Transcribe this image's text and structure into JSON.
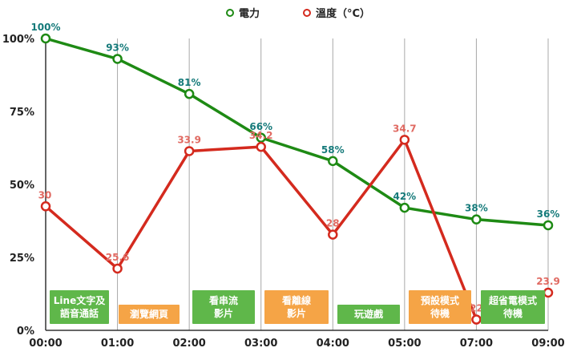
{
  "legend": [
    {
      "label": "電力",
      "color": "#1e8a14"
    },
    {
      "label": "溫度（°C）",
      "color": "#d42a1e"
    }
  ],
  "chart_data": {
    "type": "line",
    "categories": [
      "00:00",
      "01:00",
      "02:00",
      "03:00",
      "04:00",
      "05:00",
      "07:00",
      "09:00"
    ],
    "series": [
      {
        "name": "電力",
        "color": "#1e8a14",
        "label_color": "#157a7a",
        "values": [
          100,
          93,
          81,
          66,
          58,
          42,
          38,
          36
        ],
        "labels": [
          "100%",
          "93%",
          "81%",
          "66%",
          "58%",
          "42%",
          "38%",
          "36%"
        ]
      },
      {
        "name": "溫度（°C）",
        "color": "#d42a1e",
        "label_color": "#e06a62",
        "values": [
          30,
          25.6,
          33.9,
          34.2,
          28,
          34.7,
          22,
          23.9
        ],
        "labels": [
          "30",
          "25.6",
          "33.9",
          "34.2",
          "28",
          "34.7",
          "22",
          "23.9"
        ]
      }
    ],
    "yticks": [
      "0%",
      "25%",
      "50%",
      "75%",
      "100%"
    ],
    "ylim": [
      0,
      100
    ],
    "grid": "vertical",
    "legend_position": "top-center"
  },
  "activities": [
    {
      "label": "Line文字及\n語音通話",
      "color": "green"
    },
    {
      "label": "瀏覽網頁",
      "color": "orange"
    },
    {
      "label": "看串流\n影片",
      "color": "green"
    },
    {
      "label": "看離線\n影片",
      "color": "orange"
    },
    {
      "label": "玩遊戲",
      "color": "green"
    },
    {
      "label": "預設模式\n待機",
      "color": "orange"
    },
    {
      "label": "超省電模式\n待機",
      "color": "green"
    }
  ]
}
